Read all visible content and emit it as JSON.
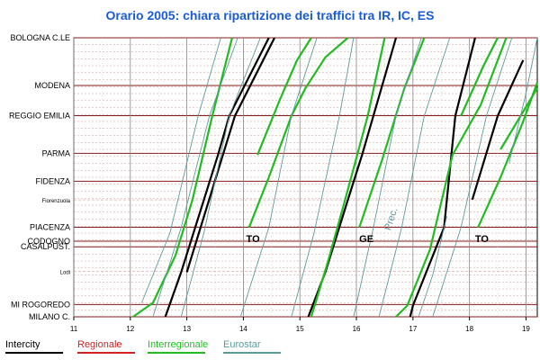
{
  "chart_data": {
    "type": "line",
    "title": "Orario 2005: chiara ripartizione dei traffici tra IR, IC, ES",
    "xlabel": "",
    "ylabel": "",
    "xlim": [
      11,
      19.2
    ],
    "x_ticks": [
      "11",
      "12",
      "13",
      "14",
      "15",
      "16",
      "17",
      "18",
      "19"
    ],
    "y_axis_note": "distance-based station axis (Milano at bottom, Bologna at top)",
    "stations": [
      {
        "name": "BOLOGNA C.LE",
        "pos": 1.0,
        "small": false
      },
      {
        "name": "MODENA",
        "pos": 0.829,
        "small": false
      },
      {
        "name": "REGGIO EMILIA",
        "pos": 0.721,
        "small": false
      },
      {
        "name": "PARMA",
        "pos": 0.586,
        "small": false
      },
      {
        "name": "FIDENZA",
        "pos": 0.486,
        "small": false
      },
      {
        "name": "Fiorenzuola",
        "pos": 0.419,
        "small": true
      },
      {
        "name": "PIACENZA",
        "pos": 0.321,
        "small": false
      },
      {
        "name": "CODOGNO",
        "pos": 0.271,
        "small": false
      },
      {
        "name": "CASALPUST.",
        "pos": 0.251,
        "small": false
      },
      {
        "name": "Lodi",
        "pos": 0.163,
        "small": true
      },
      {
        "name": "MI ROGOREDO",
        "pos": 0.044,
        "small": false
      },
      {
        "name": "MILANO C.",
        "pos": 0.0,
        "small": false
      }
    ],
    "series": [
      {
        "name": "Intercity",
        "color": "#000000",
        "trains": [
          {
            "x": [
              12.62,
              12.9,
              13.55,
              13.75,
              14.45
            ],
            "y": [
              0.0,
              0.16,
              0.58,
              0.72,
              1.0
            ]
          },
          {
            "x": [
              13.0,
              13.85,
              14.55
            ],
            "y": [
              0.16,
              0.72,
              1.0
            ]
          },
          {
            "x": [
              15.15,
              15.45,
              15.85,
              16.1,
              16.7
            ],
            "y": [
              0.0,
              0.16,
              0.42,
              0.58,
              1.0
            ]
          },
          {
            "x": [
              16.95,
              17.0,
              17.55,
              17.75,
              18.1
            ],
            "y": [
              0.0,
              0.04,
              0.32,
              0.72,
              1.0
            ]
          },
          {
            "x": [
              18.05,
              18.5,
              18.95
            ],
            "y": [
              0.42,
              0.72,
              0.92
            ]
          }
        ]
      },
      {
        "name": "Regionale",
        "color": "#cc2222",
        "trains": []
      },
      {
        "name": "Interregionale",
        "color": "#22bb22",
        "trains": [
          {
            "x": [
              12.05,
              12.4,
              12.8,
              13.1,
              13.45,
              13.8
            ],
            "y": [
              0.0,
              0.05,
              0.22,
              0.42,
              0.72,
              1.0
            ]
          },
          {
            "x": [
              14.1,
              14.45,
              14.85,
              15.1,
              15.45,
              15.85
            ],
            "y": [
              0.32,
              0.5,
              0.72,
              0.82,
              0.93,
              1.0
            ]
          },
          {
            "x": [
              15.2,
              15.5,
              15.8,
              16.2,
              16.5
            ],
            "y": [
              0.0,
              0.2,
              0.42,
              0.72,
              1.0
            ]
          },
          {
            "x": [
              16.05,
              16.45,
              16.85,
              17.2
            ],
            "y": [
              0.32,
              0.56,
              0.82,
              1.0
            ]
          },
          {
            "x": [
              16.7,
              16.9,
              17.3,
              17.7,
              18.2,
              18.65
            ],
            "y": [
              0.0,
              0.04,
              0.24,
              0.58,
              0.76,
              1.0
            ]
          },
          {
            "x": [
              18.15,
              18.55,
              18.95,
              19.2
            ],
            "y": [
              0.32,
              0.5,
              0.7,
              0.84
            ]
          },
          {
            "x": [
              18.55,
              19.2
            ],
            "y": [
              0.6,
              0.82
            ]
          },
          {
            "x": [
              14.25,
              14.65,
              14.95,
              15.2
            ],
            "y": [
              0.58,
              0.78,
              0.92,
              1.0
            ]
          },
          {
            "x": [
              17.85,
              18.25,
              18.5
            ],
            "y": [
              0.72,
              0.9,
              1.0
            ]
          }
        ]
      },
      {
        "name": "Eurostar",
        "color": "#5e9a9a",
        "trains": [
          {
            "x": [
              12.2,
              12.7,
              13.2,
              13.6
            ],
            "y": [
              0.05,
              0.3,
              0.72,
              1.0
            ]
          },
          {
            "x": [
              12.4,
              12.9,
              13.4,
              13.9
            ],
            "y": [
              0.0,
              0.32,
              0.72,
              1.0
            ]
          },
          {
            "x": [
              12.9,
              13.3,
              13.75,
              14.3
            ],
            "y": [
              0.0,
              0.3,
              0.72,
              1.0
            ]
          },
          {
            "x": [
              13.95,
              14.45,
              14.85,
              15.3
            ],
            "y": [
              0.0,
              0.32,
              0.72,
              1.0
            ]
          },
          {
            "x": [
              14.85,
              15.25,
              15.7,
              15.95
            ],
            "y": [
              0.0,
              0.3,
              0.72,
              1.0
            ]
          },
          {
            "x": [
              15.95,
              16.3,
              16.7,
              17.15
            ],
            "y": [
              0.0,
              0.32,
              0.72,
              1.0
            ]
          },
          {
            "x": [
              16.4,
              16.8,
              17.2,
              17.65
            ],
            "y": [
              0.0,
              0.32,
              0.72,
              1.0
            ]
          },
          {
            "x": [
              17.35,
              17.85,
              18.3,
              18.75
            ],
            "y": [
              0.0,
              0.32,
              0.72,
              1.0
            ]
          },
          {
            "x": [
              17.1,
              17.35,
              17.6
            ],
            "y": [
              0.0,
              0.15,
              0.36
            ]
          },
          {
            "x": [
              18.7,
              19.0,
              19.2
            ],
            "y": [
              0.55,
              0.8,
              1.0
            ]
          }
        ]
      }
    ],
    "annotations": [
      {
        "text": "TO",
        "x": 14.05,
        "y": 0.3
      },
      {
        "text": "GE",
        "x": 16.05,
        "y": 0.3
      },
      {
        "text": "TO",
        "x": 18.1,
        "y": 0.3
      },
      {
        "text": "Prec.",
        "x": 16.6,
        "y": 0.34,
        "rotated": true,
        "color": "#5e9a9a"
      }
    ],
    "grid": true,
    "legend_position": "bottom-left"
  }
}
